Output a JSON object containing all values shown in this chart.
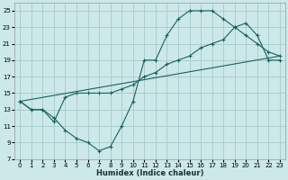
{
  "xlabel": "Humidex (Indice chaleur)",
  "background_color": "#cce8e8",
  "grid_color": "#aacece",
  "line_color": "#1a6060",
  "xlim": [
    -0.5,
    23.5
  ],
  "ylim": [
    7,
    26
  ],
  "xticks": [
    0,
    1,
    2,
    3,
    4,
    5,
    6,
    7,
    8,
    9,
    10,
    11,
    12,
    13,
    14,
    15,
    16,
    17,
    18,
    19,
    20,
    21,
    22,
    23
  ],
  "yticks": [
    7,
    9,
    11,
    13,
    15,
    17,
    19,
    21,
    23,
    25
  ],
  "line1_x": [
    0,
    1,
    2,
    3,
    4,
    5,
    6,
    7,
    8,
    9,
    10,
    11,
    12,
    13,
    14,
    15,
    16,
    17,
    18,
    19,
    20,
    21,
    22,
    23
  ],
  "line1_y": [
    14,
    13,
    13,
    12,
    10.5,
    9.5,
    9,
    8,
    8.5,
    11,
    14,
    19,
    19,
    22,
    24,
    25,
    25,
    25,
    24,
    23,
    22,
    21,
    20,
    19.5
  ],
  "line2_x": [
    0,
    1,
    2,
    3,
    4,
    5,
    6,
    7,
    8,
    9,
    10,
    11,
    12,
    13,
    14,
    15,
    16,
    17,
    18,
    19,
    20,
    21,
    22,
    23
  ],
  "line2_y": [
    14,
    13,
    13,
    11.5,
    14.5,
    15,
    15,
    15,
    15,
    15.5,
    16,
    17,
    17.5,
    18.5,
    19,
    19.5,
    20.5,
    21,
    21.5,
    23,
    23.5,
    22,
    19,
    19
  ],
  "line3_x": [
    0,
    23
  ],
  "line3_y": [
    14,
    19.5
  ]
}
